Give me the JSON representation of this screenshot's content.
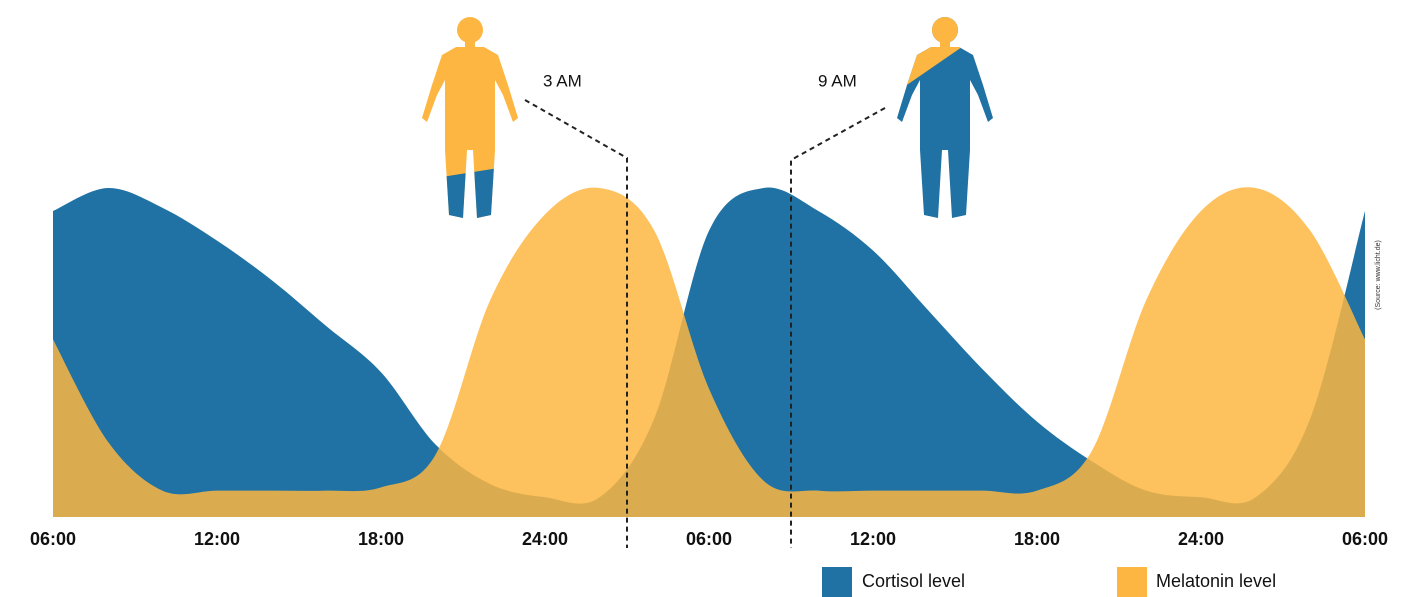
{
  "chart_data": {
    "type": "area",
    "x": [
      0,
      2,
      4,
      6,
      8,
      10,
      12,
      14,
      16,
      18,
      20,
      22,
      24,
      26,
      28,
      30,
      32,
      34,
      36,
      38,
      40,
      42,
      44,
      46,
      48
    ],
    "xlim": [
      0,
      48
    ],
    "xticks": [
      {
        "value": 0,
        "label": "06:00"
      },
      {
        "value": 6,
        "label": "12:00"
      },
      {
        "value": 12,
        "label": "18:00"
      },
      {
        "value": 18,
        "label": "24:00"
      },
      {
        "value": 24,
        "label": "06:00"
      },
      {
        "value": 30,
        "label": "12:00"
      },
      {
        "value": 36,
        "label": "18:00"
      },
      {
        "value": 42,
        "label": "24:00"
      },
      {
        "value": 48,
        "label": "06:00"
      }
    ],
    "ylim": [
      0,
      100
    ],
    "series": [
      {
        "name": "Cortisol level",
        "color": "#1f72a3",
        "values": [
          93,
          100,
          94,
          84,
          72,
          58,
          44,
          22,
          10,
          6,
          6,
          30,
          87,
          100,
          93,
          81,
          63,
          45,
          29,
          17,
          8,
          6,
          6,
          30,
          93
        ]
      },
      {
        "name": "Melatonin level",
        "color": "#fdb641",
        "values": [
          54,
          23,
          8,
          8,
          8,
          8,
          9,
          19,
          66,
          92,
          100,
          87,
          39,
          11,
          8,
          8,
          8,
          8,
          8,
          20,
          66,
          93,
          100,
          87,
          54
        ]
      }
    ],
    "annotations": [
      {
        "label": "3 AM",
        "x": 21
      },
      {
        "label": "9 AM",
        "x": 27
      }
    ],
    "source": "(Source: www.licht.de)"
  }
}
